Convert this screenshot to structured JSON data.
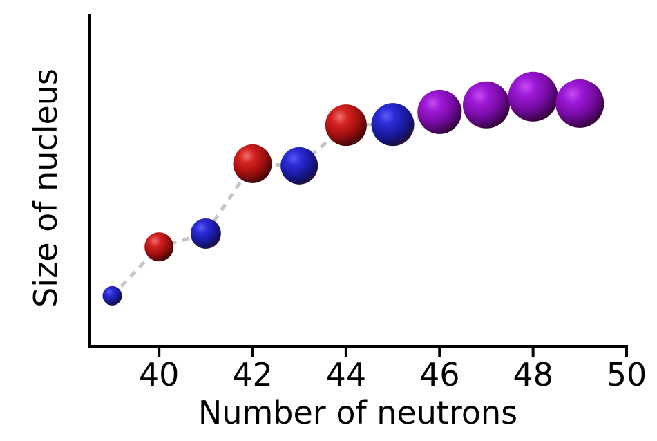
{
  "chart_data": {
    "type": "scatter",
    "subtype": "bubble-3d-spheres-connected-by-dashed-line",
    "title": "",
    "xlabel": "Number of neutrons",
    "ylabel": "Size of nucleus",
    "xlim": [
      38.52,
      50.0
    ],
    "ylim": [
      0,
      100
    ],
    "x_ticks": [
      40,
      42,
      44,
      46,
      48,
      50
    ],
    "y_ticks": [],
    "grid": false,
    "legend": false,
    "line": {
      "style": "dashed",
      "color": "#c6c6c6",
      "width": 5,
      "dash": [
        10,
        9
      ]
    },
    "points": [
      {
        "x": 39,
        "y": 15.2,
        "radius": 14,
        "color": "blue"
      },
      {
        "x": 40,
        "y": 29.9,
        "radius": 21,
        "color": "red"
      },
      {
        "x": 41,
        "y": 33.9,
        "radius": 22,
        "color": "blue"
      },
      {
        "x": 42,
        "y": 54.9,
        "radius": 28,
        "color": "red"
      },
      {
        "x": 43,
        "y": 54.3,
        "radius": 27,
        "color": "blue"
      },
      {
        "x": 44,
        "y": 66.5,
        "radius": 30,
        "color": "red"
      },
      {
        "x": 45,
        "y": 66.7,
        "radius": 31,
        "color": "blue"
      },
      {
        "x": 46,
        "y": 70.5,
        "radius": 32,
        "color": "purple"
      },
      {
        "x": 47,
        "y": 72.6,
        "radius": 34,
        "color": "purple"
      },
      {
        "x": 48,
        "y": 75.1,
        "radius": 36,
        "color": "purple"
      },
      {
        "x": 49,
        "y": 73.0,
        "radius": 35,
        "color": "purple"
      }
    ],
    "colors": {
      "red": "#b31312",
      "blue": "#2323c8",
      "purple": "#8c10c8",
      "line": "#c6c6c6",
      "axis": "#000000",
      "background": "#ffffff"
    }
  }
}
